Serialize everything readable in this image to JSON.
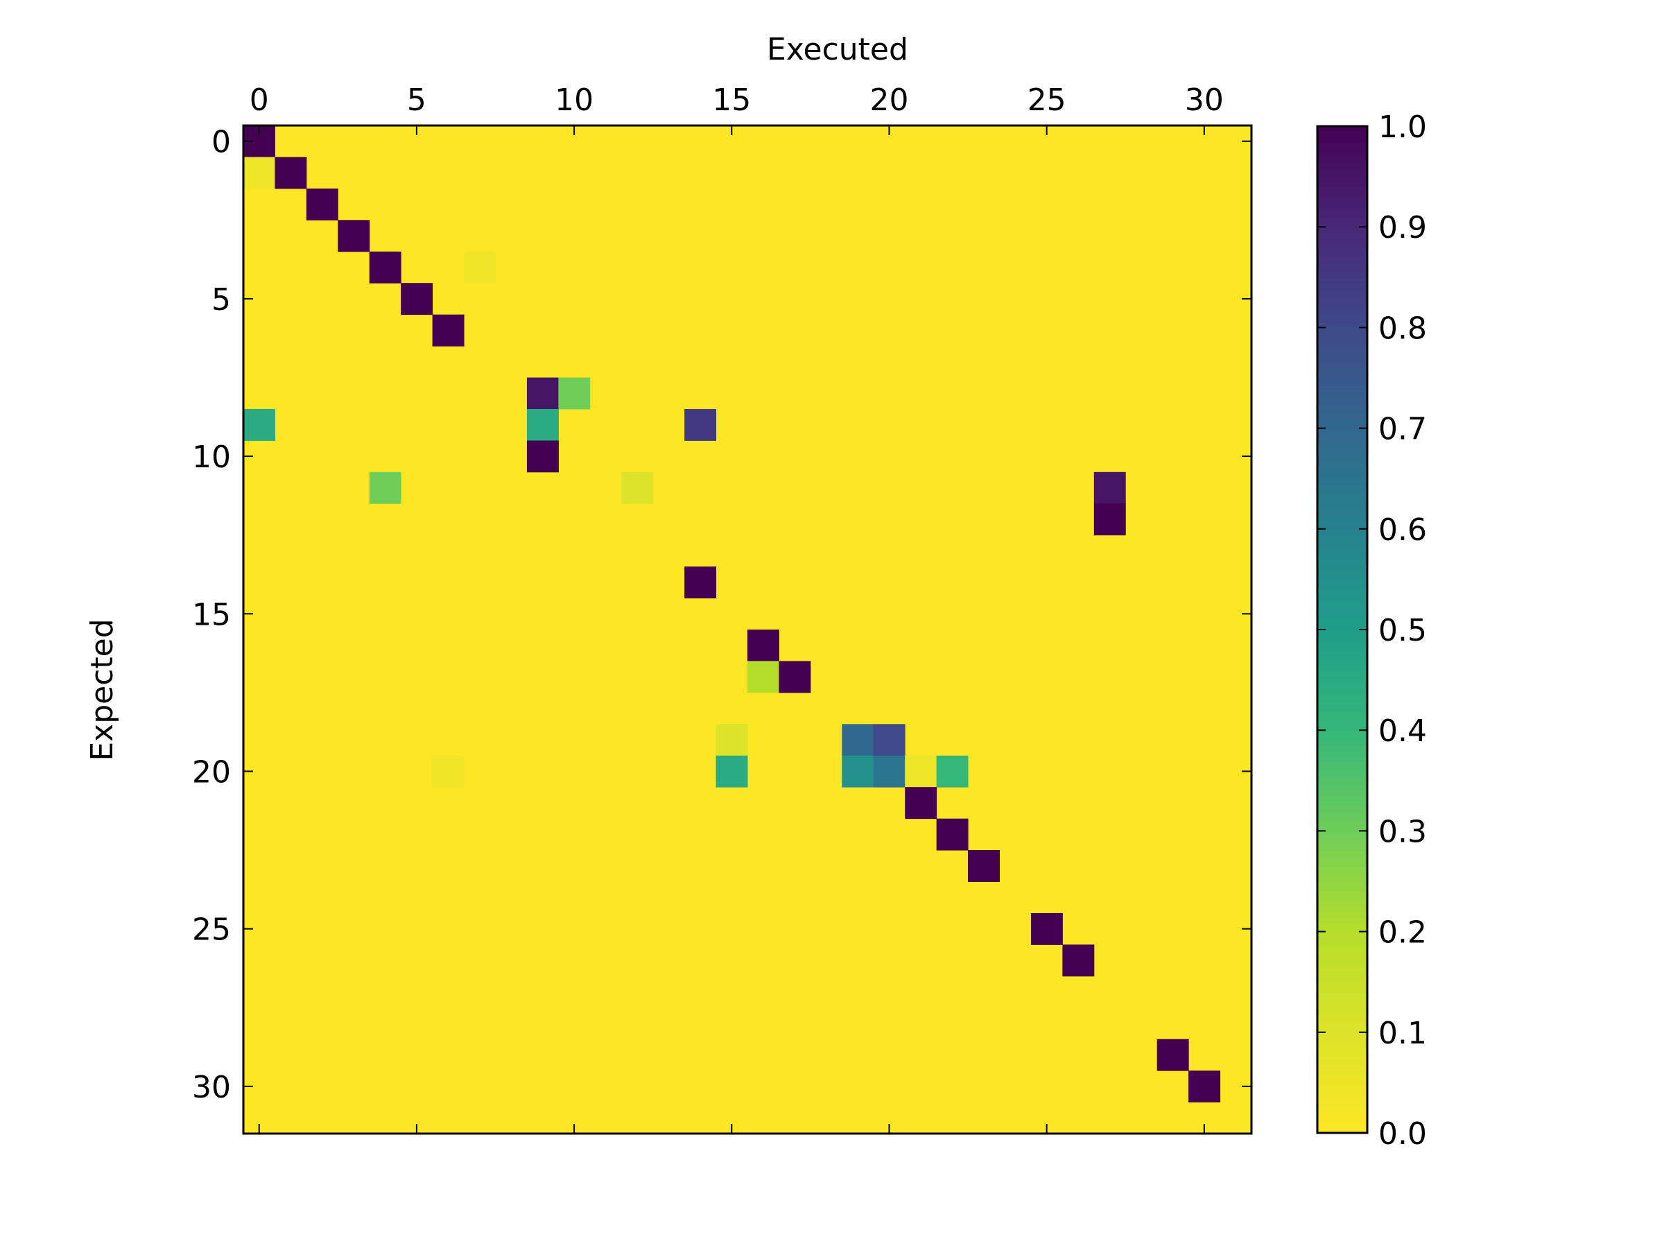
{
  "chart_data": {
    "type": "heatmap",
    "title": "",
    "xlabel": "Executed",
    "ylabel": "Expected",
    "n_rows": 32,
    "n_cols": 32,
    "x_ticks": [
      "0",
      "5",
      "10",
      "15",
      "20",
      "25",
      "30"
    ],
    "y_ticks": [
      "0",
      "5",
      "10",
      "15",
      "20",
      "25",
      "30"
    ],
    "x_axis_position": "top",
    "colormap": "viridis_r",
    "vmin": 0.0,
    "vmax": 1.0,
    "background_value": 0.0,
    "colorbar_ticks": [
      "0.0",
      "0.1",
      "0.2",
      "0.3",
      "0.4",
      "0.5",
      "0.6",
      "0.7",
      "0.8",
      "0.9",
      "1.0"
    ],
    "cells": [
      {
        "row": 0,
        "col": 0,
        "value": 1.0
      },
      {
        "row": 1,
        "col": 0,
        "value": 0.05
      },
      {
        "row": 1,
        "col": 1,
        "value": 1.0
      },
      {
        "row": 2,
        "col": 2,
        "value": 1.0
      },
      {
        "row": 3,
        "col": 3,
        "value": 1.0
      },
      {
        "row": 4,
        "col": 4,
        "value": 1.0
      },
      {
        "row": 4,
        "col": 7,
        "value": 0.04
      },
      {
        "row": 5,
        "col": 5,
        "value": 1.0
      },
      {
        "row": 6,
        "col": 6,
        "value": 1.0
      },
      {
        "row": 8,
        "col": 9,
        "value": 0.95
      },
      {
        "row": 8,
        "col": 10,
        "value": 0.3
      },
      {
        "row": 9,
        "col": 0,
        "value": 0.45
      },
      {
        "row": 9,
        "col": 9,
        "value": 0.45
      },
      {
        "row": 9,
        "col": 14,
        "value": 0.85
      },
      {
        "row": 10,
        "col": 9,
        "value": 1.0
      },
      {
        "row": 11,
        "col": 4,
        "value": 0.3
      },
      {
        "row": 11,
        "col": 12,
        "value": 0.1
      },
      {
        "row": 11,
        "col": 27,
        "value": 0.95
      },
      {
        "row": 12,
        "col": 27,
        "value": 1.0
      },
      {
        "row": 14,
        "col": 14,
        "value": 1.0
      },
      {
        "row": 16,
        "col": 16,
        "value": 1.0
      },
      {
        "row": 17,
        "col": 16,
        "value": 0.2
      },
      {
        "row": 17,
        "col": 17,
        "value": 1.0
      },
      {
        "row": 19,
        "col": 15,
        "value": 0.1
      },
      {
        "row": 19,
        "col": 19,
        "value": 0.7
      },
      {
        "row": 19,
        "col": 20,
        "value": 0.8
      },
      {
        "row": 20,
        "col": 6,
        "value": 0.04
      },
      {
        "row": 20,
        "col": 15,
        "value": 0.45
      },
      {
        "row": 20,
        "col": 19,
        "value": 0.55
      },
      {
        "row": 20,
        "col": 20,
        "value": 0.65
      },
      {
        "row": 20,
        "col": 21,
        "value": 0.05
      },
      {
        "row": 20,
        "col": 22,
        "value": 0.4
      },
      {
        "row": 21,
        "col": 21,
        "value": 1.0
      },
      {
        "row": 22,
        "col": 22,
        "value": 1.0
      },
      {
        "row": 23,
        "col": 23,
        "value": 1.0
      },
      {
        "row": 25,
        "col": 25,
        "value": 1.0
      },
      {
        "row": 26,
        "col": 26,
        "value": 1.0
      },
      {
        "row": 29,
        "col": 29,
        "value": 1.0
      },
      {
        "row": 30,
        "col": 30,
        "value": 1.0
      }
    ]
  }
}
